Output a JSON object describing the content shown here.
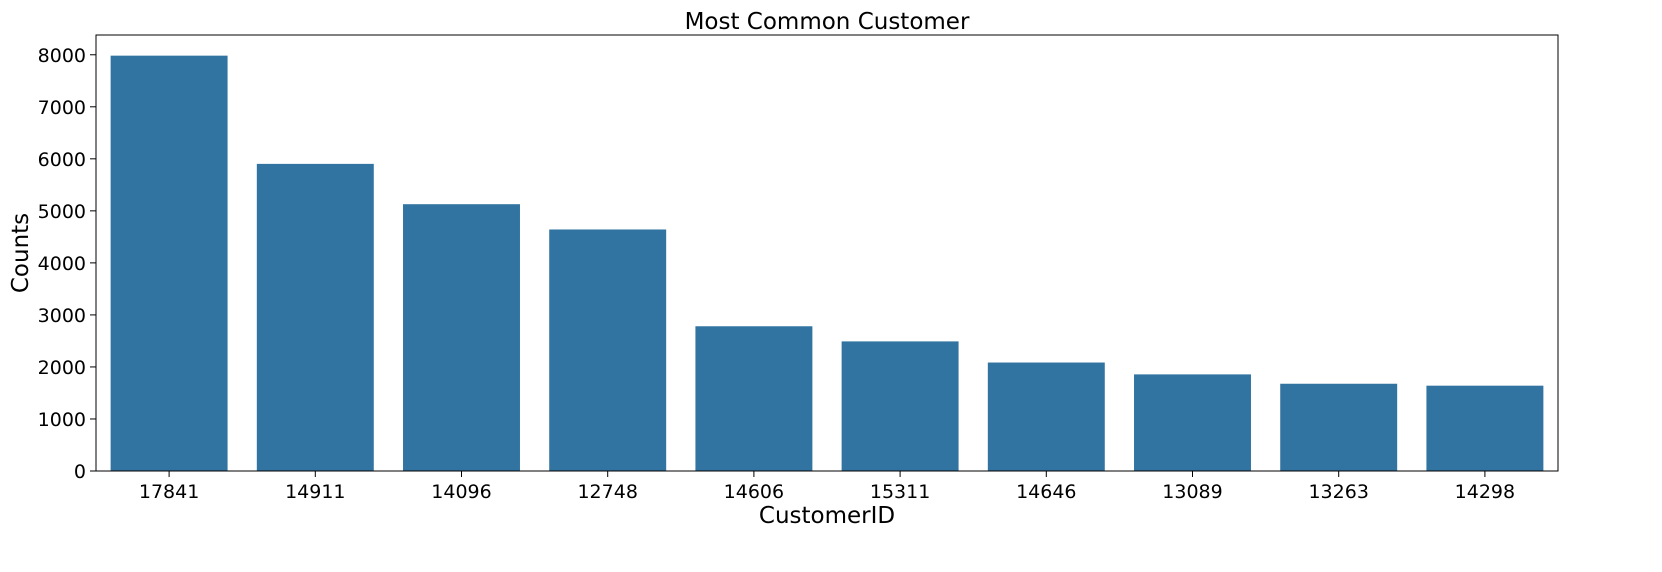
{
  "chart_data": {
    "type": "bar",
    "title": "Most Common Customer",
    "xlabel": "CustomerID",
    "ylabel": "Counts",
    "categories": [
      "17841",
      "14911",
      "14096",
      "12748",
      "14606",
      "15311",
      "14646",
      "13089",
      "13263",
      "14298"
    ],
    "values": [
      7983,
      5903,
      5128,
      4642,
      2782,
      2491,
      2085,
      1857,
      1677,
      1640
    ],
    "ylim": [
      0,
      8380
    ],
    "yticks": [
      0,
      1000,
      2000,
      3000,
      4000,
      5000,
      6000,
      7000,
      8000
    ],
    "bar_color": "#3274a1",
    "grid": false,
    "legend": "none"
  }
}
